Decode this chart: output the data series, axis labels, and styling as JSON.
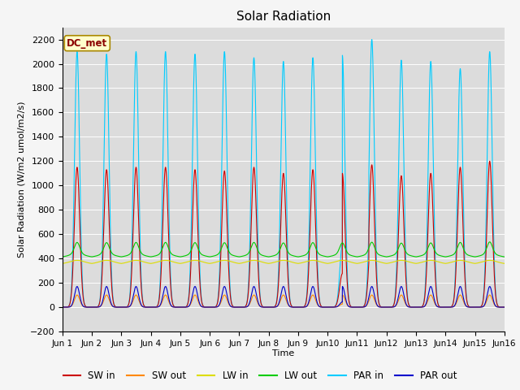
{
  "title": "Solar Radiation",
  "ylabel": "Solar Radiation (W/m2 umol/m2/s)",
  "xlabel": "Time",
  "ylim": [
    -200,
    2300
  ],
  "yticks": [
    -200,
    0,
    200,
    400,
    600,
    800,
    1000,
    1200,
    1400,
    1600,
    1800,
    2000,
    2200
  ],
  "plot_bg_color": "#dcdcdc",
  "fig_bg_color": "#f5f5f5",
  "legend_label": "DC_met",
  "series_colors": {
    "SW_in": "#cc0000",
    "SW_out": "#ff8800",
    "LW_in": "#dddd00",
    "LW_out": "#00cc00",
    "PAR_in": "#00ccff",
    "PAR_out": "#0000cc"
  },
  "n_days": 15,
  "pts_per_day": 288
}
